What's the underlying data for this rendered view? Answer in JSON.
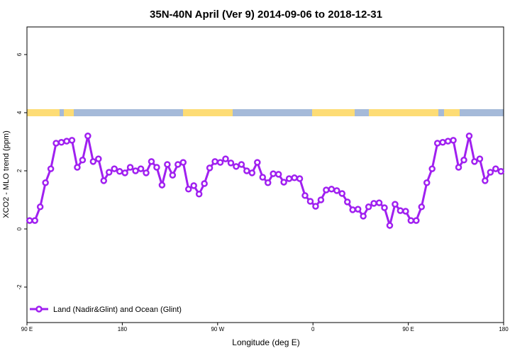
{
  "chart_data": {
    "type": "line",
    "title": "35N-40N April (Ver 9)   2014-09-06 to 2018-12-31",
    "x_label": "Longitude (deg E)",
    "y_label": "XCO2 - MLO trend (ppm)",
    "x": [
      92.5,
      97.5,
      102.5,
      107.5,
      112.5,
      117.5,
      122.5,
      127.5,
      132.5,
      137.5,
      142.5,
      147.5,
      152.5,
      157.5,
      162.5,
      167.5,
      172.5,
      177.5,
      182.5,
      187.5,
      192.5,
      197.5,
      202.5,
      207.5,
      212.5,
      217.5,
      222.5,
      227.5,
      232.5,
      237.5,
      242.5,
      247.5,
      252.5,
      257.5,
      262.5,
      267.5,
      272.5,
      277.5,
      282.5,
      287.5,
      292.5,
      297.5,
      302.5,
      307.5,
      312.5,
      317.5,
      322.5,
      327.5,
      332.5,
      337.5,
      342.5,
      347.5,
      352.5,
      357.5,
      362.5,
      367.5,
      372.5,
      377.5,
      382.5,
      387.5,
      392.5,
      397.5,
      402.5,
      407.5,
      412.5,
      417.5,
      422.5,
      427.5,
      432.5,
      437.5,
      442.5,
      447.5,
      452.5,
      457.5,
      462.5,
      467.5,
      472.5,
      477.5,
      482.5,
      487.5,
      492.5,
      497.5,
      502.5,
      507.5,
      512.5,
      517.5,
      522.5,
      527.5,
      532.5,
      537.5
    ],
    "series": [
      {
        "name": "Land (Nadir&Glint) and Ocean (Glint)",
        "color": "#a020f0",
        "values": [
          0.29,
          0.29,
          0.76,
          1.59,
          2.07,
          2.95,
          2.98,
          3.02,
          3.05,
          2.12,
          2.37,
          3.2,
          2.32,
          2.41,
          1.66,
          1.95,
          2.07,
          1.98,
          1.93,
          2.12,
          2.0,
          2.07,
          1.93,
          2.32,
          2.12,
          1.51,
          2.22,
          1.85,
          2.22,
          2.29,
          1.37,
          1.49,
          1.2,
          1.56,
          2.1,
          2.32,
          2.29,
          2.41,
          2.27,
          2.15,
          2.22,
          2.0,
          1.93,
          2.29,
          1.78,
          1.59,
          1.9,
          1.88,
          1.61,
          1.73,
          1.76,
          1.73,
          1.15,
          0.95,
          0.78,
          1.0,
          1.34,
          1.37,
          1.32,
          1.22,
          0.93,
          0.66,
          0.68,
          0.44,
          0.76,
          0.88,
          0.9,
          0.73,
          0.12,
          0.85,
          0.63,
          0.61,
          0.29,
          0.29,
          0.76,
          1.59,
          2.07,
          2.95,
          2.98,
          3.02,
          3.05,
          2.12,
          2.37,
          3.2,
          2.32,
          2.41,
          1.66,
          1.95,
          2.07,
          1.98
        ]
      }
    ],
    "xlim": [
      90,
      540
    ],
    "xticks": [
      {
        "value": 90,
        "label": "90 E"
      },
      180,
      {
        "value": 270,
        "label": "90 W"
      },
      0,
      {
        "value": 450,
        "label": "90 E"
      },
      180
    ],
    "ylim": [
      -3.22,
      6.95
    ],
    "yticks": [
      -2,
      0,
      2,
      4,
      6
    ],
    "legend": "bottom-left"
  }
}
